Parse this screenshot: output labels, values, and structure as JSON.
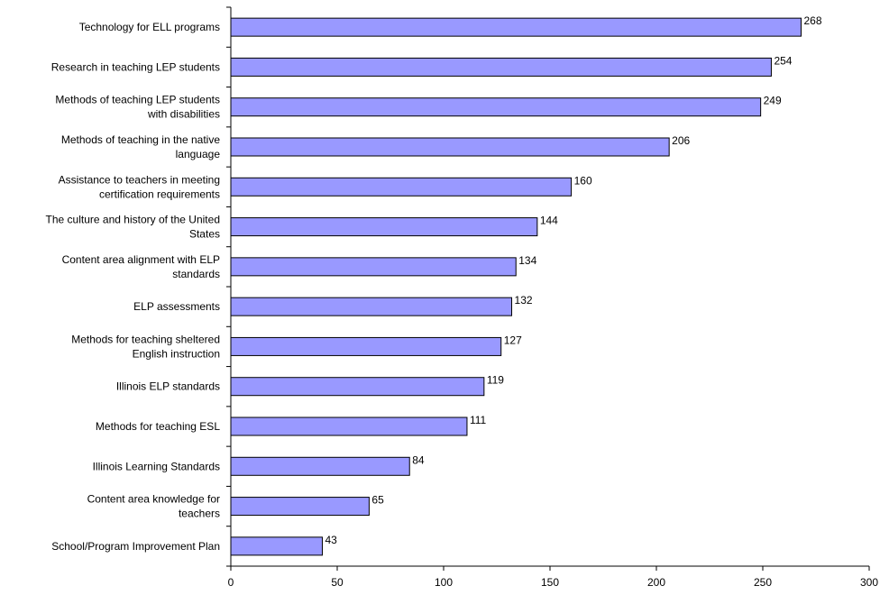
{
  "chart_data": {
    "type": "bar",
    "orientation": "horizontal",
    "title": "",
    "xlabel": "",
    "ylabel": "",
    "categories": [
      [
        "Technology for ELL programs"
      ],
      [
        "Research in teaching LEP students"
      ],
      [
        "Methods of teaching LEP students",
        "with disabilities"
      ],
      [
        "Methods of teaching in the native",
        "language"
      ],
      [
        "Assistance to teachers in meeting",
        "certification requirements"
      ],
      [
        "The culture and history of the United",
        "States"
      ],
      [
        "Content area alignment with ELP",
        "standards"
      ],
      [
        "ELP assessments"
      ],
      [
        "Methods for teaching sheltered",
        "English instruction"
      ],
      [
        "Illinois ELP standards"
      ],
      [
        "Methods for teaching ESL"
      ],
      [
        "Illinois Learning Standards"
      ],
      [
        "Content area knowledge for",
        "teachers"
      ],
      [
        "School/Program Improvement Plan"
      ]
    ],
    "values": [
      268,
      254,
      249,
      206,
      160,
      144,
      134,
      132,
      127,
      119,
      111,
      84,
      65,
      43
    ],
    "xlim": [
      0,
      300
    ],
    "xticks": [
      0,
      50,
      100,
      150,
      200,
      250,
      300
    ],
    "bar_color": "#9999ff",
    "grid": false,
    "data_labels": true
  }
}
